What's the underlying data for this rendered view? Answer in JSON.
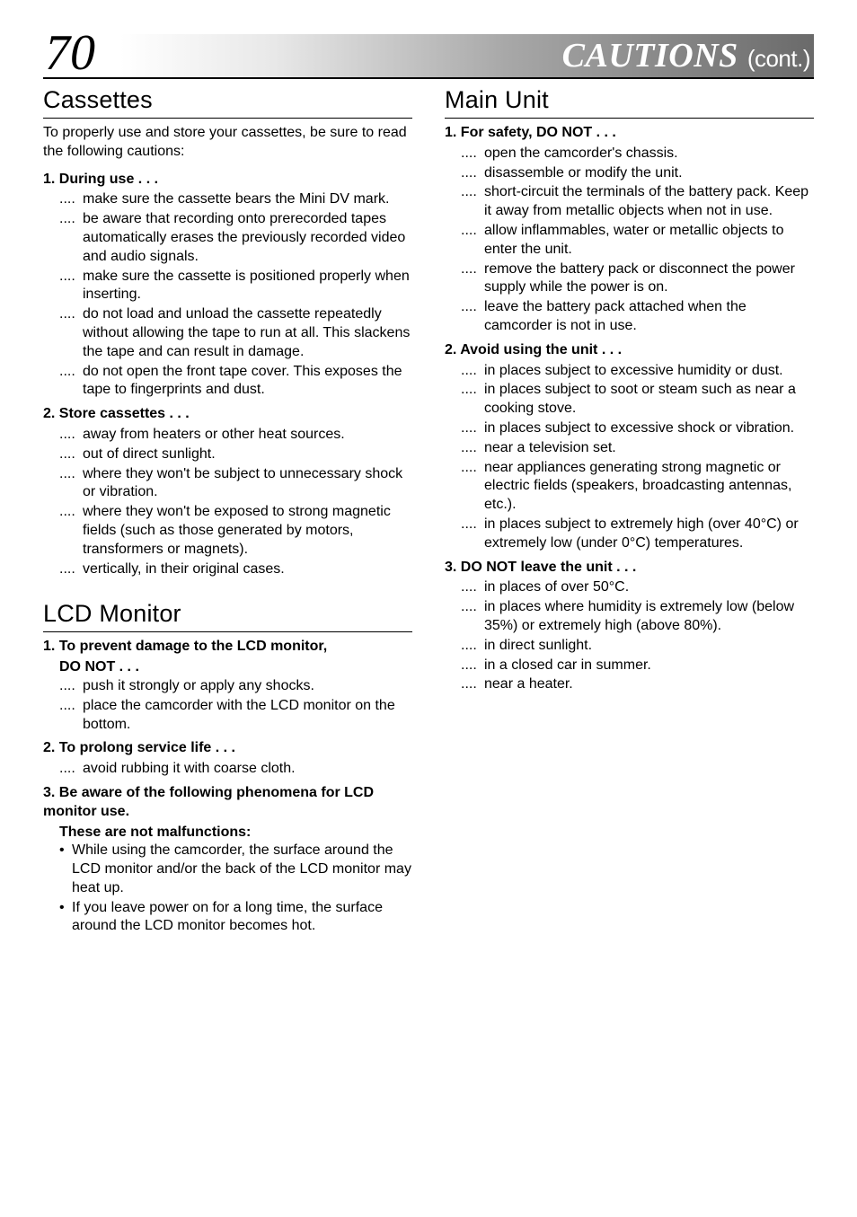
{
  "page_number": "70",
  "header_title": "CAUTIONS",
  "header_cont": "(cont.)",
  "colors": {
    "text": "#000000",
    "background": "#ffffff",
    "rule": "#000000",
    "header_grad_start": "#ffffff",
    "header_grad_end": "#6a6a6a",
    "header_text": "#ffffff"
  },
  "typography": {
    "body_pt": 16,
    "section_title_pt": 27,
    "page_num_pt": 56,
    "header_title_pt": 38,
    "header_cont_pt": 26,
    "body_family": "Optima",
    "serif_family": "Palatino"
  },
  "left": {
    "sec1": {
      "title": "Cassettes",
      "intro": "To properly use and store your cassettes, be sure to read the following cautions:",
      "h1": "1. During use . . .",
      "h1_items": [
        "make sure the cassette bears the Mini DV mark.",
        "be aware that recording onto prerecorded tapes automatically erases the previously recorded video and audio signals.",
        "make sure the cassette is positioned properly when inserting.",
        "do not load and unload the cassette repeatedly without allowing the tape to run at all. This slackens the tape and can result in damage.",
        "do not open the front tape cover. This exposes the tape to fingerprints and dust."
      ],
      "h2": "2. Store cassettes . . .",
      "h2_items": [
        "away from heaters or other heat sources.",
        "out of direct sunlight.",
        "where they won't be subject to unnecessary shock or vibration.",
        "where they won't be exposed to strong magnetic fields (such as those generated by motors, transformers or magnets).",
        "vertically, in their original cases."
      ]
    },
    "sec2": {
      "title": "LCD Monitor",
      "h1a": "1. To prevent damage to the LCD monitor,",
      "h1b": "DO NOT . . .",
      "h1_items": [
        "push it strongly or apply any shocks.",
        "place the camcorder with the LCD monitor on the bottom."
      ],
      "h2": "2. To prolong service life . . .",
      "h2_items": [
        "avoid rubbing it with coarse cloth."
      ],
      "h3a": "3. Be aware of the following phenomena for LCD monitor use.",
      "h3b": "These are not malfunctions:",
      "h3_bullets": [
        "While using the camcorder, the surface around the LCD monitor and/or the back of the LCD monitor may heat up.",
        "If you leave power on for a long time, the surface around the LCD monitor becomes hot."
      ]
    }
  },
  "right": {
    "sec1": {
      "title": "Main Unit",
      "h1": "1. For safety, DO NOT . . .",
      "h1_items": [
        "open the camcorder's chassis.",
        "disassemble or modify the unit.",
        "short-circuit the terminals of the battery pack. Keep it away from metallic objects when not in use.",
        "allow inflammables, water or metallic objects to enter the unit.",
        "remove the battery pack or disconnect the power supply while the power is on.",
        "leave the battery pack attached when the camcorder is not in use."
      ],
      "h2": "2. Avoid using the unit . . .",
      "h2_items": [
        "in places subject to excessive humidity or dust.",
        "in places subject to soot or steam such as near a cooking stove.",
        "in places subject to excessive shock or vibration.",
        "near a television set.",
        "near appliances generating strong magnetic or electric fields (speakers, broadcasting antennas, etc.).",
        "in places subject to extremely high (over 40°C) or extremely low (under 0°C) temperatures."
      ],
      "h3": "3. DO NOT leave the unit . . .",
      "h3_items": [
        "in places of over 50°C.",
        "in places where humidity is extremely low (below 35%) or extremely high (above 80%).",
        "in direct sunlight.",
        "in a closed car in summer.",
        "near a heater."
      ]
    }
  },
  "markers": {
    "dots": "....",
    "bullet": "•"
  }
}
